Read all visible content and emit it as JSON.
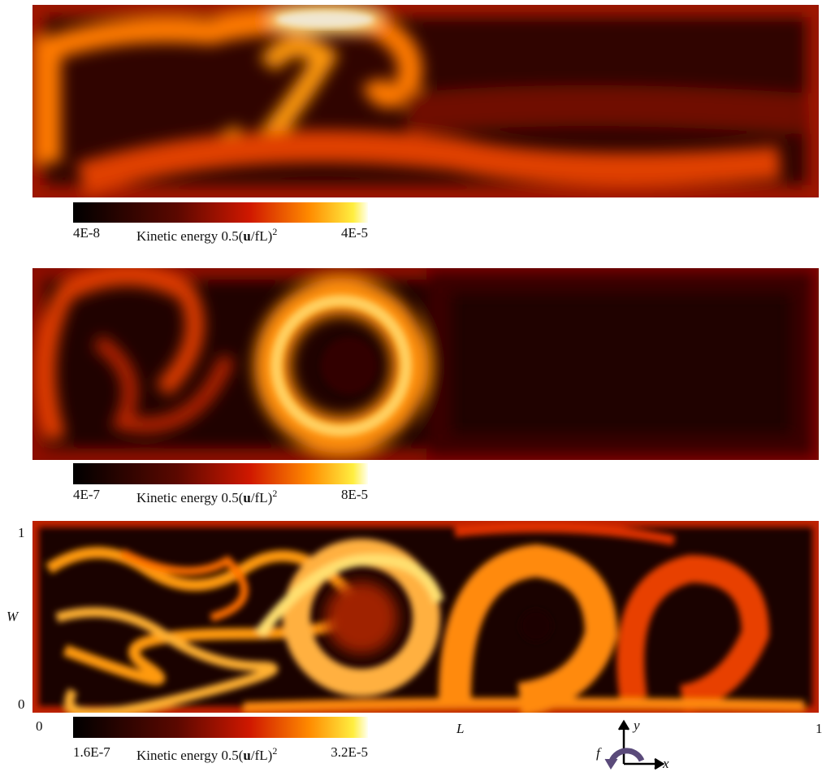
{
  "panels": [
    {
      "colorbar": {
        "min_label": "4E-8",
        "max_label": "4E-5",
        "label": {
          "before": "Kinetic energy 0.5(",
          "bold": "u",
          "after": "/fL)",
          "sup": "2"
        }
      }
    },
    {
      "colorbar": {
        "min_label": "4E-7",
        "max_label": "8E-5",
        "label": {
          "before": "Kinetic energy 0.5(",
          "bold": "u",
          "after": "/fL)",
          "sup": "2"
        }
      }
    },
    {
      "colorbar": {
        "min_label": "1.6E-7",
        "max_label": "3.2E-5",
        "label": {
          "before": "Kinetic energy 0.5(",
          "bold": "u",
          "after": "/fL)",
          "sup": "2"
        }
      }
    }
  ],
  "axes": {
    "y_top": "1",
    "y_label": "W",
    "y_bottom": "0",
    "x_left": "0",
    "x_label": "L",
    "x_right": "1"
  },
  "orientation": {
    "y": "y",
    "x": "x",
    "f": "f"
  }
}
